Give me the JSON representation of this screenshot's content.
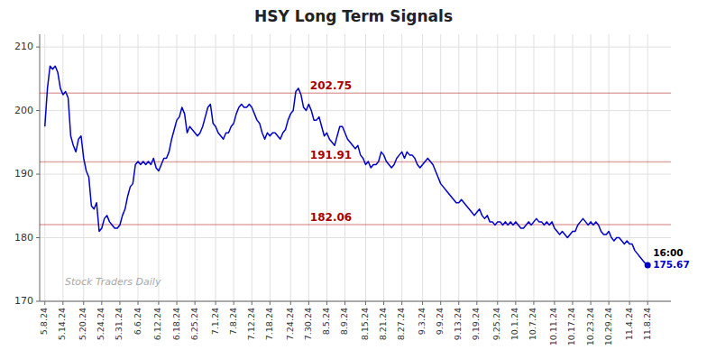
{
  "chart_data": {
    "type": "line",
    "title": "HSY Long Term Signals",
    "color": "#0000cc",
    "grid": true,
    "ylim": [
      170,
      212
    ],
    "yticks": [
      170,
      180,
      190,
      200,
      210
    ],
    "reference_lines": [
      {
        "value": 202.75,
        "label": "202.75",
        "color": "#aa0000"
      },
      {
        "value": 191.91,
        "label": "191.91",
        "color": "#aa0000"
      },
      {
        "value": 182.06,
        "label": "182.06",
        "color": "#aa0000"
      }
    ],
    "watermark": "Stock Traders Daily",
    "last_point_label": "16:00",
    "categories": [
      "5.8.24",
      null,
      null,
      null,
      null,
      null,
      null,
      "5.14.24",
      null,
      null,
      null,
      null,
      null,
      null,
      null,
      "5.20.24",
      null,
      null,
      null,
      null,
      null,
      null,
      "5.24.24",
      null,
      null,
      null,
      null,
      null,
      null,
      "5.31.24",
      null,
      null,
      null,
      null,
      null,
      null,
      "6.6.24",
      null,
      null,
      null,
      null,
      null,
      null,
      null,
      "6.12.24",
      null,
      null,
      null,
      null,
      null,
      null,
      "6.18.24",
      null,
      null,
      null,
      null,
      null,
      null,
      "6.25.24",
      null,
      null,
      null,
      null,
      null,
      null,
      null,
      "7.1.24",
      null,
      null,
      null,
      null,
      null,
      null,
      "7.8.24",
      null,
      null,
      null,
      null,
      null,
      null,
      "7.12.24",
      null,
      null,
      null,
      null,
      null,
      null,
      "7.18.24",
      null,
      null,
      null,
      null,
      null,
      null,
      null,
      "7.24.24",
      null,
      null,
      null,
      null,
      null,
      null,
      "7.30.24",
      null,
      null,
      null,
      null,
      null,
      null,
      "8.5.24",
      null,
      null,
      null,
      null,
      null,
      null,
      "8.9.24",
      null,
      null,
      null,
      null,
      null,
      null,
      null,
      "8.15.24",
      null,
      null,
      null,
      null,
      null,
      null,
      "8.21.24",
      null,
      null,
      null,
      null,
      null,
      null,
      "8.27.24",
      null,
      null,
      null,
      null,
      null,
      null,
      null,
      "9.3.24",
      null,
      null,
      null,
      null,
      null,
      null,
      "9.9.24",
      null,
      null,
      null,
      null,
      null,
      null,
      "9.13.24",
      null,
      null,
      null,
      null,
      null,
      null,
      "9.19.24",
      null,
      null,
      null,
      null,
      null,
      null,
      null,
      "9.25.24",
      null,
      null,
      null,
      null,
      null,
      null,
      "10.1.24",
      null,
      null,
      null,
      null,
      null,
      null,
      "10.7.24",
      null,
      null,
      null,
      null,
      null,
      null,
      null,
      "10.11.24",
      null,
      null,
      null,
      null,
      null,
      null,
      "10.17.24",
      null,
      null,
      null,
      null,
      null,
      null,
      "10.23.24",
      null,
      null,
      null,
      null,
      null,
      null,
      "10.29.24",
      null,
      null,
      null,
      null,
      null,
      null,
      null,
      "11.4.24",
      null,
      null,
      null,
      null,
      null,
      null,
      "11.8.24"
    ],
    "values": [
      197.5,
      203.5,
      207.0,
      206.5,
      207.0,
      206.0,
      203.5,
      202.5,
      203.0,
      202.0,
      196.0,
      194.5,
      193.5,
      195.5,
      196.0,
      192.5,
      190.5,
      189.5,
      185.0,
      184.5,
      185.5,
      181.0,
      181.5,
      183.0,
      183.5,
      182.5,
      182.0,
      181.5,
      181.5,
      182.0,
      183.5,
      184.5,
      186.5,
      188.0,
      188.5,
      191.5,
      192.0,
      191.5,
      192.0,
      191.5,
      192.0,
      191.5,
      192.5,
      191.0,
      190.5,
      191.5,
      192.5,
      192.5,
      193.5,
      195.5,
      197.0,
      198.5,
      199.0,
      200.5,
      199.5,
      196.5,
      197.5,
      197.0,
      196.5,
      196.0,
      196.5,
      197.5,
      199.0,
      200.5,
      201.0,
      198.0,
      197.5,
      196.5,
      196.0,
      195.5,
      196.5,
      196.5,
      197.5,
      198.0,
      199.5,
      200.5,
      201.0,
      200.5,
      200.5,
      201.0,
      200.5,
      199.5,
      198.5,
      198.0,
      196.5,
      195.5,
      196.5,
      196.0,
      196.5,
      196.5,
      196.0,
      195.5,
      196.5,
      197.0,
      198.5,
      199.5,
      200.0,
      203.0,
      203.5,
      202.5,
      200.5,
      200.0,
      201.0,
      200.0,
      198.5,
      198.5,
      199.0,
      197.5,
      196.0,
      196.5,
      195.5,
      195.0,
      194.5,
      196.0,
      197.5,
      197.5,
      196.5,
      195.5,
      195.0,
      194.5,
      194.0,
      194.5,
      193.0,
      192.5,
      191.5,
      192.0,
      191.0,
      191.5,
      191.5,
      192.0,
      193.5,
      193.0,
      192.0,
      191.5,
      191.0,
      191.5,
      192.5,
      193.0,
      193.5,
      192.5,
      193.5,
      193.0,
      193.0,
      192.5,
      191.5,
      191.0,
      191.5,
      192.0,
      192.5,
      192.0,
      191.5,
      190.5,
      189.5,
      188.5,
      188.0,
      187.5,
      187.0,
      186.5,
      186.0,
      185.5,
      185.5,
      186.0,
      185.5,
      185.0,
      184.5,
      184.0,
      183.5,
      184.0,
      184.5,
      183.5,
      183.0,
      183.5,
      182.5,
      182.5,
      182.0,
      182.5,
      182.5,
      182.0,
      182.5,
      182.0,
      182.5,
      182.0,
      182.5,
      182.0,
      181.5,
      181.5,
      182.0,
      182.5,
      182.0,
      182.5,
      183.0,
      182.5,
      182.5,
      182.0,
      182.5,
      182.0,
      182.5,
      181.5,
      181.0,
      180.5,
      181.0,
      180.5,
      180.0,
      180.5,
      181.0,
      181.0,
      182.0,
      182.5,
      183.0,
      182.5,
      182.0,
      182.5,
      182.0,
      182.5,
      182.0,
      181.0,
      180.5,
      180.5,
      181.0,
      180.0,
      179.5,
      180.0,
      180.0,
      179.5,
      179.0,
      179.5,
      179.0,
      179.0,
      178.0,
      177.5,
      177.0,
      176.5,
      176.0,
      175.67
    ]
  }
}
